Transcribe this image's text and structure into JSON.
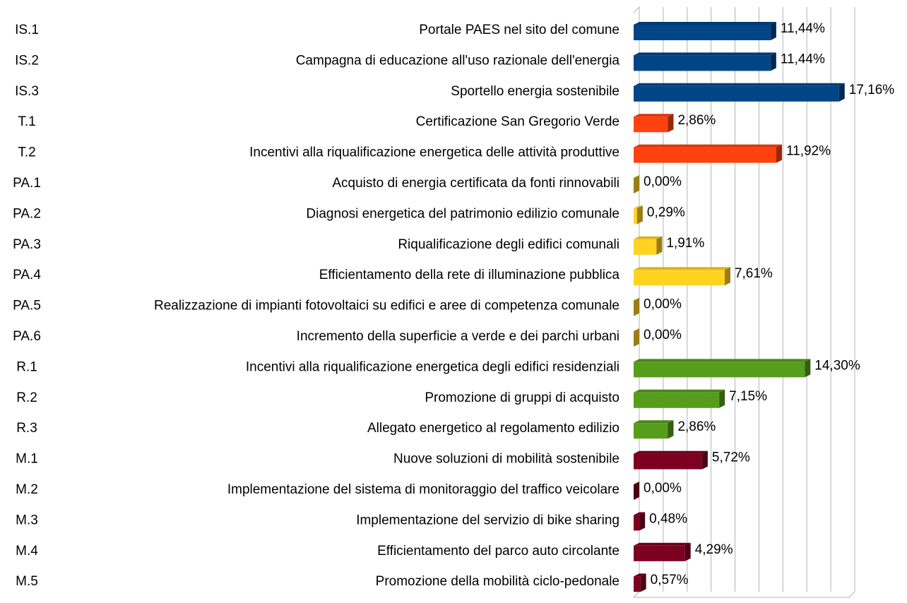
{
  "chart_data": {
    "type": "bar",
    "orientation": "horizontal",
    "codes": [
      "IS.1",
      "IS.2",
      "IS.3",
      "T.1",
      "T.2",
      "PA.1",
      "PA.2",
      "PA.3",
      "PA.4",
      "PA.5",
      "PA.6",
      "R.1",
      "R.2",
      "R.3",
      "M.1",
      "M.2",
      "M.3",
      "M.4",
      "M.5"
    ],
    "categories": [
      "Portale PAES nel sito del comune",
      "Campagna di educazione all'uso razionale dell'energia",
      "Sportello energia sostenibile",
      "Certificazione San Gregorio Verde",
      "Incentivi alla riqualificazione energetica delle attività produttive",
      "Acquisto di energia certificata da fonti rinnovabili",
      "Diagnosi energetica del patrimonio edilizio comunale",
      "Riqualificazione degli edifici comunali",
      "Efficientamento della rete di illuminazione pubblica",
      "Realizzazione di impianti fotovoltaici su edifici e aree di competenza comunale",
      "Incremento della superficie a verde e dei parchi urbani",
      "Incentivi alla riqualificazione energetica degli edifici residenziali",
      "Promozione di gruppi di acquisto",
      "Allegato energetico al regolamento edilizio",
      "Nuove soluzioni di mobilità sostenibile",
      "Implementazione del sistema di monitoraggio del traffico veicolare",
      "Implementazione del servizio di bike sharing",
      "Efficientamento del parco auto circolante",
      "Promozione della mobilità ciclo-pedonale"
    ],
    "values": [
      11.44,
      11.44,
      17.16,
      2.86,
      11.92,
      0,
      0.29,
      1.91,
      7.61,
      0,
      0,
      14.3,
      7.15,
      2.86,
      5.72,
      0,
      0.48,
      4.29,
      0.57
    ],
    "value_labels": [
      "11,44%",
      "11,44%",
      "17,16%",
      "2,86%",
      "11,92%",
      "0,00%",
      "0,29%",
      "1,91%",
      "7,61%",
      "0,00%",
      "0,00%",
      "14,30%",
      "7,15%",
      "2,86%",
      "5,72%",
      "0,00%",
      "0,48%",
      "4,29%",
      "0,57%"
    ],
    "colors": [
      "#004586",
      "#004586",
      "#004586",
      "#ff420e",
      "#ff420e",
      "#ffd320",
      "#ffd320",
      "#ffd320",
      "#ffd320",
      "#ffd320",
      "#ffd320",
      "#579d1c",
      "#579d1c",
      "#579d1c",
      "#7e0021",
      "#7e0021",
      "#7e0021",
      "#7e0021",
      "#7e0021"
    ],
    "xlim": [
      0,
      18
    ],
    "xticks": [
      0,
      2,
      4,
      6,
      8,
      10,
      12,
      14,
      16,
      18
    ],
    "grid": true
  }
}
